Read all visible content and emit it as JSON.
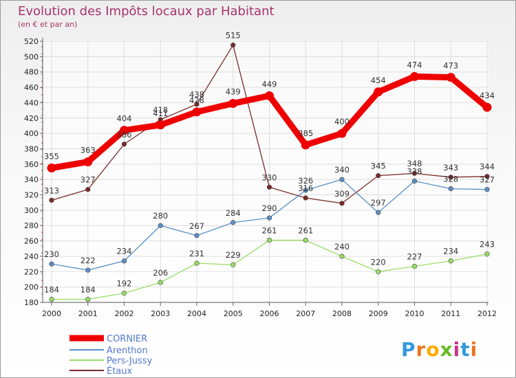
{
  "chart_data": {
    "type": "line",
    "title": "Evolution des Impôts locaux par Habitant",
    "subtitle": "(en € et par an)",
    "x": [
      "2000",
      "2001",
      "2002",
      "2003",
      "2004",
      "2005",
      "2006",
      "2007",
      "2008",
      "2009",
      "2010",
      "2011",
      "2012"
    ],
    "ylim": [
      180,
      520
    ],
    "yticks": [
      180,
      200,
      220,
      240,
      260,
      280,
      300,
      320,
      340,
      360,
      380,
      400,
      420,
      440,
      460,
      480,
      500,
      520
    ],
    "grid": true,
    "legend_position": "bottom-left",
    "series": [
      {
        "name": "CORNIER",
        "color": "#ee0000",
        "values": [
          355,
          363,
          404,
          411,
          428,
          439,
          449,
          385,
          400,
          454,
          474,
          473,
          434
        ]
      },
      {
        "name": "Arenthon",
        "color": "#5b8fc7",
        "values": [
          230,
          222,
          234,
          280,
          267,
          284,
          290,
          326,
          340,
          297,
          338,
          328,
          327
        ]
      },
      {
        "name": "Pers-Jussy",
        "color": "#99dd66",
        "values": [
          184,
          184,
          192,
          206,
          231,
          229,
          261,
          261,
          240,
          220,
          227,
          234,
          243
        ]
      },
      {
        "name": "Étaux",
        "color": "#7a2a2a",
        "values": [
          313,
          327,
          386,
          418,
          438,
          515,
          330,
          316,
          309,
          345,
          348,
          343,
          344
        ]
      }
    ],
    "data_labels": [
      [
        "355",
        "363",
        "404",
        "411",
        "428",
        "439",
        "449",
        "385",
        "400",
        "454",
        "474",
        "473",
        "434"
      ],
      [
        "230",
        "222",
        "234",
        "280",
        "267",
        "284",
        "290",
        "326",
        "340",
        "297",
        "338",
        "328",
        "327"
      ],
      [
        "184",
        "184",
        "192",
        "206",
        "231",
        "229",
        "261",
        "261",
        "240",
        "220",
        "227",
        "234",
        "243"
      ],
      [
        "313",
        "327",
        "386",
        "418",
        "438",
        "515",
        "330",
        "316",
        "309",
        "345",
        "348",
        "343",
        "344"
      ]
    ]
  },
  "watermark": {
    "text": "Proxiti"
  }
}
